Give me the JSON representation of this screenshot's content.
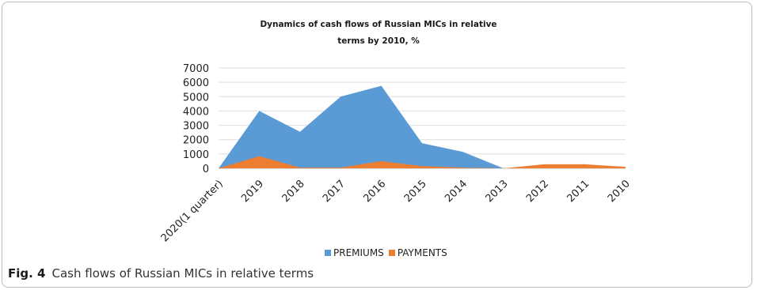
{
  "caption": {
    "label": "Fig. 4",
    "text": "Cash flows of Russian MICs in relative terms"
  },
  "chart_data": {
    "type": "area",
    "title_line1": "Dynamics of cash flows of Russian MICs in relative",
    "title_line2": "terms by 2010, %",
    "categories": [
      "2020(1 quarter)",
      "2019",
      "2018",
      "2017",
      "2016",
      "2015",
      "2014",
      "2013",
      "2012",
      "2011",
      "2010"
    ],
    "y_ticks": [
      0,
      1000,
      2000,
      3000,
      4000,
      5000,
      6000,
      7000
    ],
    "ylim": [
      0,
      7000
    ],
    "grid": true,
    "legend_position": "bottom",
    "series": [
      {
        "name": "PREMIUMS",
        "color": "#5b9bd5",
        "values": [
          0,
          4000,
          2550,
          5000,
          5750,
          1750,
          1150,
          0,
          50,
          50,
          0
        ]
      },
      {
        "name": "PAYMENTS",
        "color": "#ed7d31",
        "values": [
          0,
          850,
          50,
          50,
          500,
          150,
          50,
          0,
          280,
          280,
          100
        ]
      }
    ]
  }
}
